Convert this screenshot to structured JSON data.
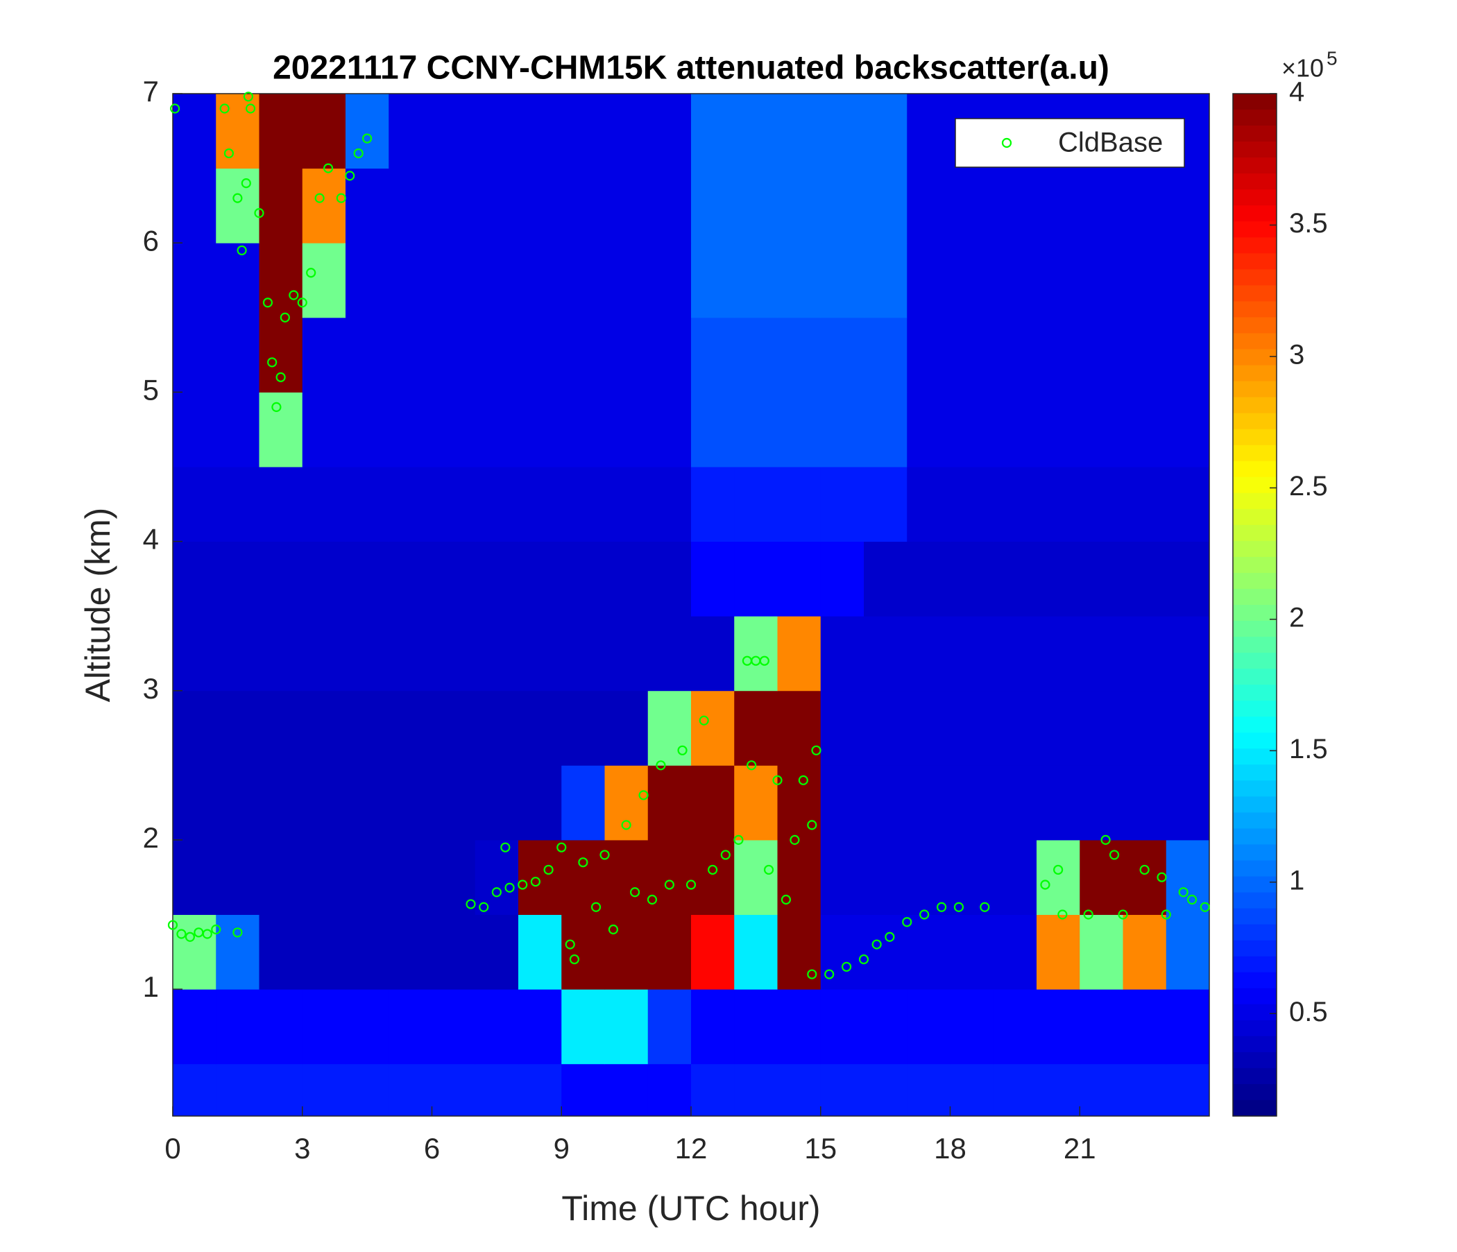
{
  "chart_data": {
    "type": "heatmap",
    "title": "20221117 CCNY-CHM15K attenuated backscatter(a.u)",
    "xlabel": "Time (UTC hour)",
    "ylabel": "Altitude (km)",
    "colormap": "jet",
    "xlim": [
      0,
      24
    ],
    "ylim": [
      0.15,
      7
    ],
    "xticks": [
      0,
      3,
      6,
      9,
      12,
      15,
      18,
      21
    ],
    "yticks": [
      1,
      2,
      3,
      4,
      5,
      6,
      7
    ],
    "clim": [
      0.11,
      4
    ],
    "cticks": [
      0.5,
      1,
      1.5,
      2,
      2.5,
      3,
      3.5,
      4
    ],
    "colorbar_multiplier": {
      "base": "×10",
      "exponent": "5"
    },
    "x_edges": [
      0,
      1,
      2,
      3,
      4,
      5,
      6,
      7,
      8,
      9,
      10,
      11,
      12,
      13,
      14,
      15,
      16,
      17,
      18,
      19,
      20,
      21,
      22,
      23,
      24
    ],
    "y_edges": [
      0.15,
      0.5,
      1,
      1.5,
      2,
      2.5,
      3,
      3.5,
      4,
      4.5,
      5,
      5.5,
      6,
      6.5,
      7
    ],
    "z": [
      [
        0.7,
        0.7,
        0.7,
        0.7,
        0.7,
        0.7,
        0.7,
        0.7,
        0.7,
        0.6,
        0.6,
        0.6,
        0.7,
        0.7,
        0.7,
        0.7,
        0.7,
        0.7,
        0.7,
        0.7,
        0.7,
        0.7,
        0.7,
        0.7
      ],
      [
        0.6,
        0.6,
        0.6,
        0.6,
        0.6,
        0.6,
        0.6,
        0.6,
        0.6,
        1.5,
        1.5,
        0.8,
        0.6,
        0.6,
        0.6,
        0.6,
        0.6,
        0.6,
        0.6,
        0.6,
        0.6,
        0.6,
        0.6,
        0.6
      ],
      [
        2,
        1,
        0.35,
        0.35,
        0.35,
        0.35,
        0.35,
        0.35,
        1.5,
        4,
        4,
        4,
        3.5,
        1.5,
        4,
        0.5,
        0.5,
        0.5,
        0.5,
        0.5,
        3,
        2,
        3,
        1
      ],
      [
        0.35,
        0.35,
        0.35,
        0.35,
        0.35,
        0.35,
        0.35,
        0.4,
        4,
        4,
        4,
        4,
        4,
        2,
        4,
        0.45,
        0.45,
        0.45,
        0.45,
        0.45,
        2,
        4,
        4,
        1
      ],
      [
        0.35,
        0.35,
        0.35,
        0.35,
        0.35,
        0.35,
        0.35,
        0.35,
        0.35,
        0.8,
        3,
        4,
        4,
        3,
        4,
        0.45,
        0.45,
        0.45,
        0.45,
        0.45,
        0.45,
        0.45,
        0.45,
        0.45
      ],
      [
        0.35,
        0.35,
        0.35,
        0.35,
        0.35,
        0.35,
        0.35,
        0.35,
        0.35,
        0.35,
        0.35,
        2,
        3,
        4,
        4,
        0.45,
        0.45,
        0.45,
        0.45,
        0.45,
        0.45,
        0.45,
        0.45,
        0.45
      ],
      [
        0.4,
        0.4,
        0.4,
        0.4,
        0.4,
        0.4,
        0.4,
        0.4,
        0.4,
        0.4,
        0.4,
        0.4,
        0.4,
        2,
        3,
        0.45,
        0.45,
        0.45,
        0.45,
        0.45,
        0.45,
        0.45,
        0.45,
        0.45
      ],
      [
        0.4,
        0.4,
        0.4,
        0.4,
        0.4,
        0.4,
        0.4,
        0.4,
        0.4,
        0.4,
        0.4,
        0.4,
        0.6,
        0.6,
        0.6,
        0.6,
        0.4,
        0.4,
        0.4,
        0.4,
        0.4,
        0.4,
        0.4,
        0.4
      ],
      [
        0.45,
        0.45,
        0.45,
        0.45,
        0.45,
        0.45,
        0.45,
        0.45,
        0.45,
        0.45,
        0.45,
        0.45,
        0.7,
        0.7,
        0.7,
        0.7,
        0.7,
        0.45,
        0.45,
        0.45,
        0.45,
        0.45,
        0.45,
        0.45
      ],
      [
        0.5,
        0.5,
        2,
        0.5,
        0.5,
        0.5,
        0.5,
        0.5,
        0.5,
        0.5,
        0.5,
        0.5,
        0.9,
        0.9,
        0.9,
        0.9,
        0.9,
        0.5,
        0.5,
        0.5,
        0.5,
        0.5,
        0.5,
        0.5
      ],
      [
        0.5,
        0.5,
        4,
        0.5,
        0.5,
        0.5,
        0.5,
        0.5,
        0.5,
        0.5,
        0.5,
        0.5,
        0.9,
        0.9,
        0.9,
        0.9,
        0.9,
        0.5,
        0.5,
        0.5,
        0.5,
        0.5,
        0.5,
        0.5
      ],
      [
        0.5,
        0.5,
        4,
        2,
        0.5,
        0.5,
        0.5,
        0.5,
        0.5,
        0.5,
        0.5,
        0.5,
        1,
        1,
        1,
        1,
        1,
        0.5,
        0.5,
        0.5,
        0.5,
        0.5,
        0.5,
        0.5
      ],
      [
        0.5,
        2,
        4,
        3,
        0.5,
        0.5,
        0.5,
        0.5,
        0.5,
        0.5,
        0.5,
        0.5,
        1,
        1,
        1,
        1,
        1,
        0.5,
        0.5,
        0.5,
        0.5,
        0.5,
        0.5,
        0.5
      ],
      [
        0.5,
        3,
        4,
        4,
        1,
        0.5,
        0.5,
        0.5,
        0.5,
        0.5,
        0.5,
        0.5,
        1,
        1,
        1,
        1,
        1,
        0.5,
        0.5,
        0.5,
        0.5,
        0.5,
        0.5,
        0.5
      ]
    ],
    "overlay": {
      "type": "scatter",
      "name": "CldBase",
      "color": "#00ff00",
      "x": [
        0.0,
        0.2,
        0.4,
        0.6,
        0.8,
        1.0,
        1.5,
        0.05,
        1.2,
        1.3,
        1.5,
        1.7,
        1.6,
        1.8,
        2.0,
        2.2,
        2.3,
        2.4,
        2.5,
        2.6,
        2.8,
        3.0,
        3.2,
        3.4,
        3.6,
        3.9,
        4.1,
        4.3,
        4.5,
        1.75,
        6.9,
        7.2,
        7.5,
        7.8,
        8.1,
        8.4,
        7.7,
        8.7,
        9.0,
        9.2,
        9.3,
        9.5,
        9.8,
        10.0,
        10.2,
        10.5,
        10.7,
        10.9,
        11.1,
        11.3,
        11.5,
        11.8,
        12.0,
        12.3,
        12.5,
        12.8,
        13.1,
        13.3,
        13.5,
        13.7,
        13.4,
        13.8,
        14.0,
        14.2,
        14.4,
        14.6,
        14.8,
        14.9,
        14.8,
        15.2,
        15.6,
        16.0,
        16.3,
        16.6,
        17.0,
        17.4,
        17.8,
        18.2,
        18.8,
        20.2,
        20.5,
        20.6,
        21.2,
        21.6,
        21.8,
        22.0,
        22.5,
        22.9,
        23.0,
        23.4,
        23.6,
        23.9
      ],
      "y": [
        1.43,
        1.37,
        1.35,
        1.38,
        1.37,
        1.4,
        1.38,
        6.9,
        6.9,
        6.6,
        6.3,
        6.4,
        5.95,
        6.9,
        6.2,
        5.6,
        5.2,
        4.9,
        5.1,
        5.5,
        5.65,
        5.6,
        5.8,
        6.3,
        6.5,
        6.3,
        6.45,
        6.6,
        6.7,
        6.98,
        1.57,
        1.55,
        1.65,
        1.68,
        1.7,
        1.72,
        1.95,
        1.8,
        1.95,
        1.3,
        1.2,
        1.85,
        1.55,
        1.9,
        1.4,
        2.1,
        1.65,
        2.3,
        1.6,
        2.5,
        1.7,
        2.6,
        1.7,
        2.8,
        1.8,
        1.9,
        2.0,
        3.2,
        3.2,
        3.2,
        2.5,
        1.8,
        2.4,
        1.6,
        2.0,
        2.4,
        2.1,
        2.6,
        1.1,
        1.1,
        1.15,
        1.2,
        1.3,
        1.35,
        1.45,
        1.5,
        1.55,
        1.55,
        1.55,
        1.7,
        1.8,
        1.5,
        1.5,
        2.0,
        1.9,
        1.5,
        1.8,
        1.75,
        1.5,
        1.65,
        1.6,
        1.55
      ]
    },
    "legend": "upper right"
  }
}
